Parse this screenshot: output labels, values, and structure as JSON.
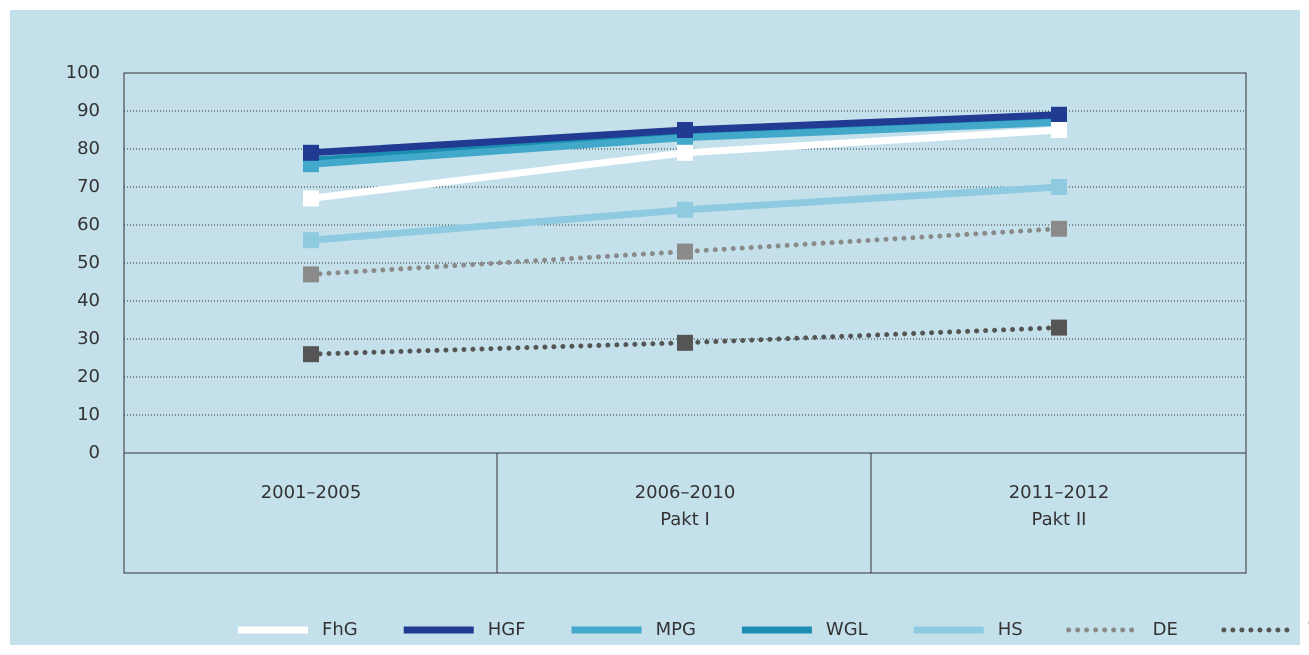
{
  "chart_data": {
    "type": "line",
    "categories": [
      [
        "2001–2005"
      ],
      [
        "2006–2010",
        "Pakt I"
      ],
      [
        "2011–2012",
        "Pakt II"
      ]
    ],
    "series": [
      {
        "name": "FhG",
        "color": "#ffffff",
        "line_style": "solid",
        "values": [
          67,
          79,
          85
        ]
      },
      {
        "name": "HGF",
        "color": "#213a92",
        "line_style": "solid",
        "values": [
          79,
          85,
          89
        ]
      },
      {
        "name": "MPG",
        "color": "#43a9cb",
        "line_style": "solid",
        "values": [
          76,
          83,
          87
        ]
      },
      {
        "name": "WGL",
        "color": "#1b8db0",
        "line_style": "solid",
        "values": [
          77,
          84,
          88
        ]
      },
      {
        "name": "HS",
        "color": "#8ecae0",
        "line_style": "solid",
        "values": [
          56,
          64,
          70
        ]
      },
      {
        "name": "DE",
        "color": "#8a8a8a",
        "line_style": "dotted",
        "values": [
          47,
          53,
          59
        ]
      },
      {
        "name": "Welt",
        "color": "#555555",
        "line_style": "dotted",
        "values": [
          26,
          29,
          33
        ]
      }
    ],
    "ylim": [
      0,
      100
    ],
    "yticks": [
      0,
      10,
      20,
      30,
      40,
      50,
      60,
      70,
      80,
      90,
      100
    ],
    "grid": true,
    "legend": "bottom"
  }
}
